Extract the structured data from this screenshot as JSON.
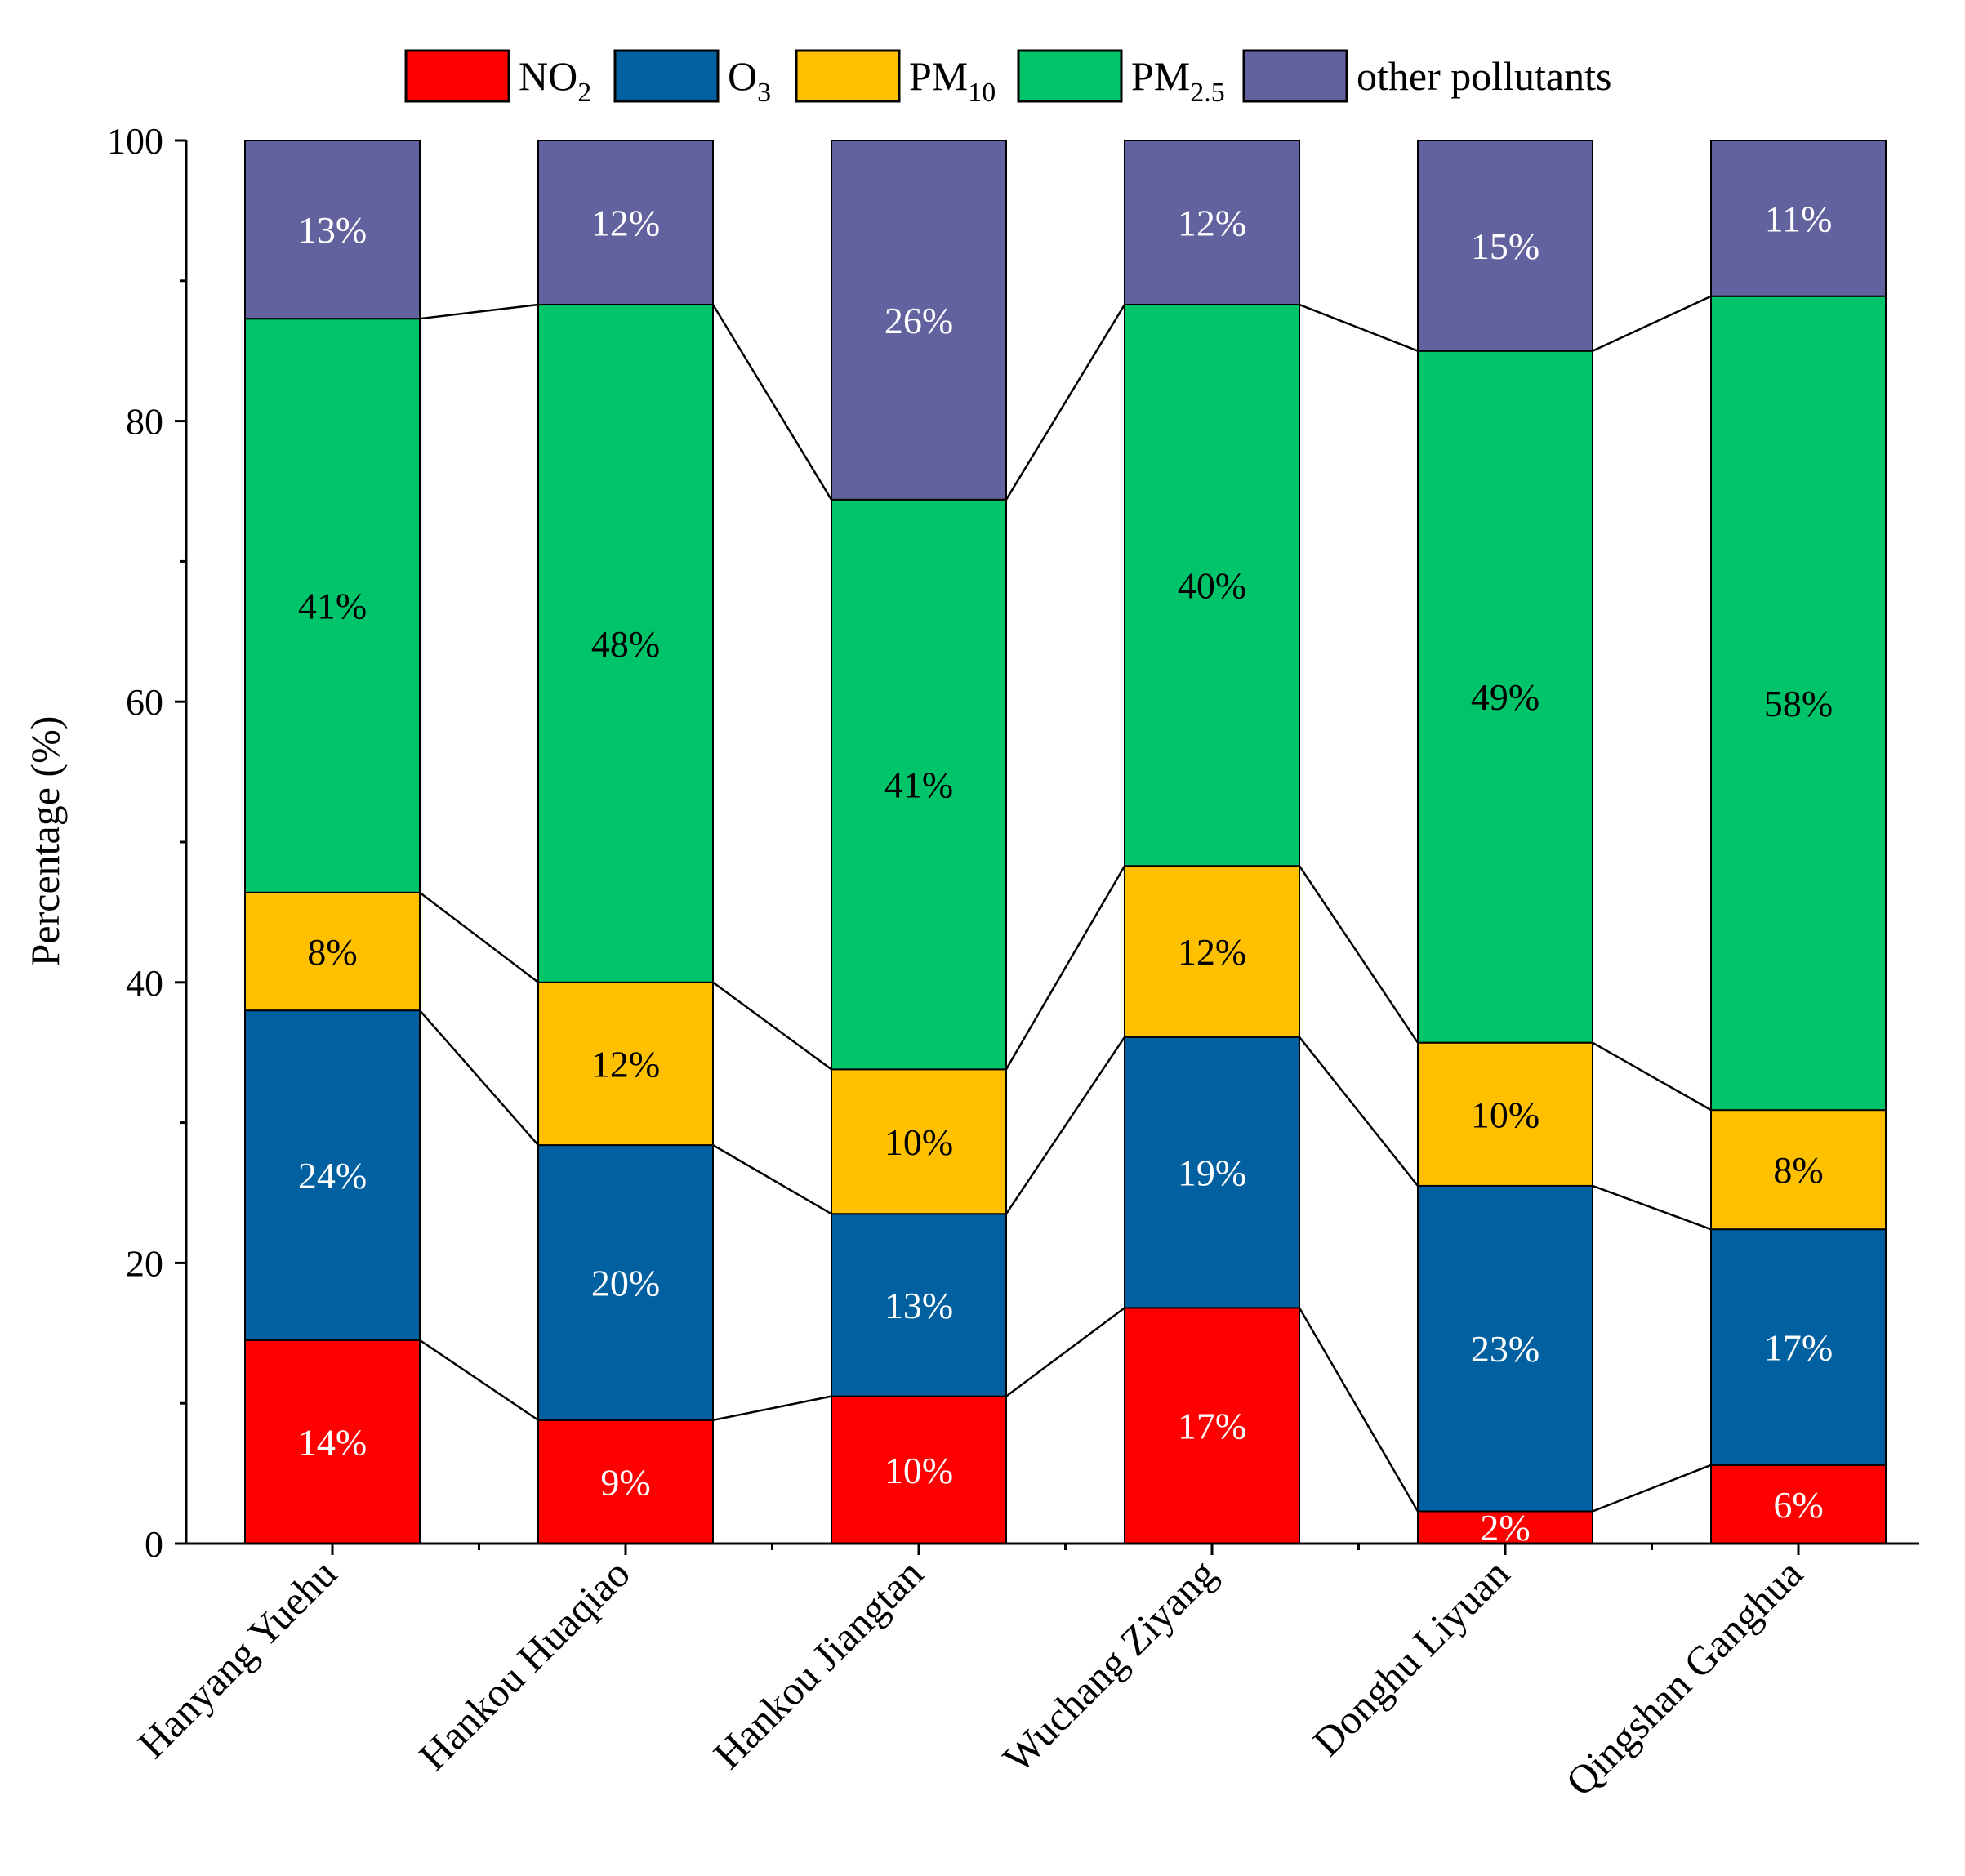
{
  "chart_data": {
    "type": "bar",
    "stacked": true,
    "title": "",
    "xlabel": "",
    "ylabel": "Percentage (%)",
    "ylim": [
      0,
      100
    ],
    "yticks": [
      0,
      20,
      40,
      60,
      80,
      100
    ],
    "connector_lines": true,
    "legend_position": "top",
    "categories": [
      "Hanyang Yuehu",
      "Hankou Huaqiao",
      "Hankou Jiangtan",
      "Wuchang Ziyang",
      "Donghu Liyuan",
      "Qingshan Ganghua"
    ],
    "series": [
      {
        "name": "NO2",
        "label_main": "NO",
        "label_sub": "2",
        "color": "#ff0000",
        "label_color": "#ffffff",
        "values": [
          14.5,
          8.8,
          10.5,
          16.8,
          2.3,
          5.6
        ],
        "labels": [
          "14%",
          "9%",
          "10%",
          "17%",
          "2%",
          "6%"
        ]
      },
      {
        "name": "O3",
        "label_main": "O",
        "label_sub": "3",
        "color": "#0060a0",
        "label_color": "#ffffff",
        "values": [
          23.5,
          19.6,
          13.0,
          19.3,
          23.2,
          16.8
        ],
        "labels": [
          "24%",
          "20%",
          "13%",
          "19%",
          "23%",
          "17%"
        ]
      },
      {
        "name": "PM10",
        "label_main": "PM",
        "label_sub": "10",
        "color": "#ffc000",
        "label_color": "#000000",
        "values": [
          8.4,
          11.6,
          10.3,
          12.2,
          10.2,
          8.5
        ],
        "labels": [
          "8%",
          "12%",
          "10%",
          "12%",
          "10%",
          "8%"
        ]
      },
      {
        "name": "PM2.5",
        "label_main": "PM",
        "label_sub": "2.5",
        "color": "#00c46a",
        "label_color": "#000000",
        "values": [
          40.9,
          48.3,
          40.6,
          40.0,
          49.3,
          58.0
        ],
        "labels": [
          "41%",
          "48%",
          "41%",
          "40%",
          "49%",
          "58%"
        ]
      },
      {
        "name": "other pollutants",
        "label_main": "other pollutants",
        "label_sub": "",
        "color": "#62629e",
        "label_color": "#ffffff",
        "values": [
          12.7,
          11.7,
          25.6,
          11.7,
          15.0,
          11.1
        ],
        "labels": [
          "13%",
          "12%",
          "26%",
          "12%",
          "15%",
          "11%"
        ]
      }
    ]
  }
}
